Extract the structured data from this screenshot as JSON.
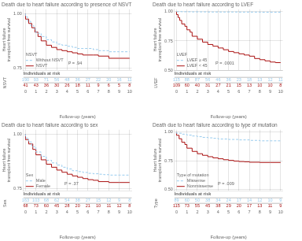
{
  "chart_data": [
    {
      "type": "step",
      "title": "Death due to heart failure according to presence of NSVT",
      "x_label": "Follow-up (years)",
      "y_label": "Heart failure transplant free survival",
      "legend_title": "NSVT",
      "legend": "lower left",
      "grid": true,
      "annotations": [
        "P = .94"
      ],
      "xlim": [
        -0.2,
        10.2
      ],
      "xticks": [
        0,
        1,
        2,
        3,
        4,
        5,
        6,
        7,
        8,
        9,
        10
      ],
      "ylim": [
        0.74,
        1.02
      ],
      "yticks": [
        0.75,
        {
          "value": 1.0,
          "label": "1.00"
        }
      ],
      "risk_table_title": "Individuals at risk",
      "risk_table_label": "NSVT",
      "series": [
        {
          "name": "Without NSVT",
          "color": "#99ccee",
          "line_style": "dashed",
          "x": [
            0,
            0.2,
            0.5,
            0.8,
            1.0,
            1.5,
            2.0,
            2.5,
            3.0,
            3.5,
            4.0,
            4.5,
            5.0,
            5.5,
            6.0,
            6.5,
            7.0,
            8.0,
            9.0,
            10.0
          ],
          "values": [
            1.0,
            0.985,
            0.965,
            0.945,
            0.93,
            0.91,
            0.895,
            0.88,
            0.87,
            0.86,
            0.855,
            0.85,
            0.845,
            0.84,
            0.84,
            0.84,
            0.835,
            0.83,
            0.825,
            0.825
          ],
          "at_risk": [
            190,
            93,
            71,
            56,
            48,
            36,
            27,
            22,
            20,
            16,
            11
          ]
        },
        {
          "name": "NSVT",
          "color": "#aa1111",
          "line_style": "solid",
          "x": [
            0,
            0.3,
            0.6,
            0.9,
            1.2,
            1.5,
            2.0,
            2.5,
            3.0,
            3.5,
            4.0,
            4.5,
            5.0,
            5.5,
            6.0,
            6.5,
            7.0,
            8.0,
            9.0,
            10.0
          ],
          "values": [
            1.0,
            0.975,
            0.955,
            0.935,
            0.915,
            0.895,
            0.875,
            0.855,
            0.845,
            0.835,
            0.83,
            0.825,
            0.82,
            0.815,
            0.81,
            0.81,
            0.81,
            0.805,
            0.795,
            0.795
          ],
          "at_risk": [
            41,
            43,
            36,
            30,
            26,
            18,
            11,
            9,
            6,
            5,
            8
          ]
        }
      ]
    },
    {
      "type": "step",
      "title": "Death due to heart failure according to LVEF",
      "x_label": "Follow-up (years)",
      "y_label": "Heart failure transplant free survival",
      "legend_title": "LVEF",
      "legend": "lower left",
      "grid": true,
      "annotations": [
        "P = .0001"
      ],
      "xlim": [
        -0.2,
        10.2
      ],
      "xticks": [
        0,
        1,
        2,
        3,
        4,
        5,
        6,
        7,
        8,
        9,
        10
      ],
      "ylim": [
        0.5,
        1.02
      ],
      "yticks": [
        {
          "value": 0.5,
          "label": "0.50"
        },
        0.75,
        {
          "value": 1.0,
          "label": "1.00"
        }
      ],
      "risk_table_title": "Individuals at risk",
      "risk_table_label": "LVEF",
      "series": [
        {
          "name": "LVEF ≥ 45",
          "color": "#99ccee",
          "line_style": "dashed",
          "x": [
            0,
            0.5,
            1.0,
            1.5,
            2.0,
            3.0,
            4.0,
            5.0,
            6.0,
            7.0,
            8.0,
            9.0,
            10.0
          ],
          "values": [
            1.0,
            1.0,
            0.999,
            0.999,
            0.998,
            0.998,
            0.997,
            0.997,
            0.997,
            0.996,
            0.996,
            0.995,
            0.995
          ],
          "at_risk": [
            115,
            88,
            87,
            56,
            46,
            36,
            23,
            18,
            13,
            12,
            11
          ]
        },
        {
          "name": "LVEF < 45",
          "color": "#aa1111",
          "line_style": "solid",
          "x": [
            0,
            0.15,
            0.3,
            0.5,
            0.8,
            1.0,
            1.3,
            1.5,
            2.0,
            2.5,
            3.0,
            3.5,
            4.0,
            4.5,
            5.0,
            5.5,
            6.0,
            6.5,
            7.0,
            7.5,
            8.0,
            8.5,
            9.0,
            9.5,
            10.0
          ],
          "values": [
            1.0,
            0.975,
            0.95,
            0.925,
            0.895,
            0.875,
            0.845,
            0.825,
            0.79,
            0.765,
            0.74,
            0.72,
            0.705,
            0.69,
            0.675,
            0.66,
            0.65,
            0.64,
            0.63,
            0.62,
            0.6,
            0.59,
            0.58,
            0.57,
            0.565
          ],
          "at_risk": [
            109,
            60,
            40,
            31,
            27,
            21,
            15,
            13,
            10,
            10,
            8
          ]
        }
      ]
    },
    {
      "type": "step",
      "title": "Death due to heart failure according to sex",
      "x_label": "Follow-up (years)",
      "y_label": "Heart failure transplant free survival",
      "legend_title": "Sex",
      "legend": "lower left",
      "grid": true,
      "annotations": [
        "P = .37"
      ],
      "xlim": [
        -0.2,
        10.2
      ],
      "xticks": [
        0,
        1,
        2,
        3,
        4,
        5,
        6,
        7,
        8,
        9,
        10
      ],
      "ylim": [
        0.74,
        1.02
      ],
      "yticks": [
        0.75,
        {
          "value": 1.0,
          "label": "1.00"
        }
      ],
      "risk_table_title": "Individuals at risk",
      "risk_table_label": "Sex",
      "series": [
        {
          "name": "Male",
          "color": "#99ccee",
          "line_style": "dashed",
          "x": [
            0,
            0.3,
            0.6,
            1.0,
            1.5,
            2.0,
            2.5,
            3.0,
            3.5,
            4.0,
            4.5,
            5.0,
            5.5,
            6.0,
            6.5,
            7.0,
            7.5,
            8.0,
            9.0,
            10.0
          ],
          "values": [
            1.0,
            0.982,
            0.964,
            0.942,
            0.918,
            0.898,
            0.88,
            0.868,
            0.858,
            0.848,
            0.84,
            0.832,
            0.828,
            0.824,
            0.82,
            0.818,
            0.816,
            0.814,
            0.812,
            0.812
          ],
          "at_risk": [
            163,
            103,
            68,
            62,
            54,
            38,
            27,
            15,
            12,
            9,
            8
          ]
        },
        {
          "name": "Female",
          "color": "#aa1111",
          "line_style": "solid",
          "x": [
            0,
            0.3,
            0.7,
            1.0,
            1.5,
            2.0,
            2.5,
            3.0,
            3.5,
            4.0,
            4.5,
            5.0,
            5.5,
            6.0,
            6.5,
            7.0,
            8.0,
            9.0,
            10.0
          ],
          "values": [
            1.0,
            0.975,
            0.955,
            0.93,
            0.905,
            0.882,
            0.862,
            0.848,
            0.835,
            0.825,
            0.816,
            0.808,
            0.802,
            0.796,
            0.791,
            0.788,
            0.782,
            0.778,
            0.778
          ],
          "at_risk": [
            68,
            73,
            60,
            45,
            28,
            20,
            21,
            10,
            11,
            12,
            8
          ]
        }
      ]
    },
    {
      "type": "step",
      "title": "Death due to heart failure according to type of mutation",
      "x_label": "Follow-up (years)",
      "y_label": "Heart failure transplant free survival",
      "legend_title": "Type of mutation",
      "legend": "lower left",
      "grid": true,
      "annotations": [
        "P = .009"
      ],
      "xlim": [
        -0.2,
        10.2
      ],
      "xticks": [
        0,
        1,
        2,
        3,
        4,
        5,
        6,
        7,
        8,
        9,
        10
      ],
      "ylim": [
        0.49,
        1.02
      ],
      "yticks": [
        {
          "value": 0.5,
          "label": "0.50"
        },
        0.75,
        {
          "value": 1.0,
          "label": "1.00"
        }
      ],
      "risk_table_title": "Individuals at risk",
      "risk_table_label": "Type",
      "series": [
        {
          "name": "Missense",
          "color": "#99ccee",
          "line_style": "dashed",
          "x": [
            0,
            0.5,
            1.0,
            1.5,
            2.0,
            2.5,
            3.0,
            3.5,
            4.0,
            5.0,
            6.0,
            7.0,
            8.0,
            9.0,
            10.0
          ],
          "values": [
            1.0,
            0.99,
            0.982,
            0.974,
            0.966,
            0.96,
            0.954,
            0.95,
            0.946,
            0.94,
            0.936,
            0.932,
            0.928,
            0.924,
            0.924
          ],
          "at_risk": [
            89,
            60,
            50,
            38,
            34,
            24,
            17,
            14,
            12,
            10,
            9
          ]
        },
        {
          "name": "Nonmissense",
          "color": "#aa1111",
          "line_style": "solid",
          "x": [
            0,
            0.25,
            0.5,
            0.8,
            1.0,
            1.5,
            2.0,
            2.5,
            3.0,
            3.5,
            4.0,
            4.5,
            5.0,
            5.5,
            6.0,
            6.5,
            7.0,
            8.0,
            9.0,
            10.0
          ],
          "values": [
            1.0,
            0.972,
            0.942,
            0.912,
            0.892,
            0.86,
            0.832,
            0.812,
            0.798,
            0.786,
            0.776,
            0.768,
            0.76,
            0.754,
            0.748,
            0.744,
            0.742,
            0.738,
            0.736,
            0.736
          ],
          "at_risk": [
            115,
            73,
            55,
            45,
            38,
            29,
            20,
            17,
            13,
            11,
            9
          ]
        }
      ]
    }
  ]
}
